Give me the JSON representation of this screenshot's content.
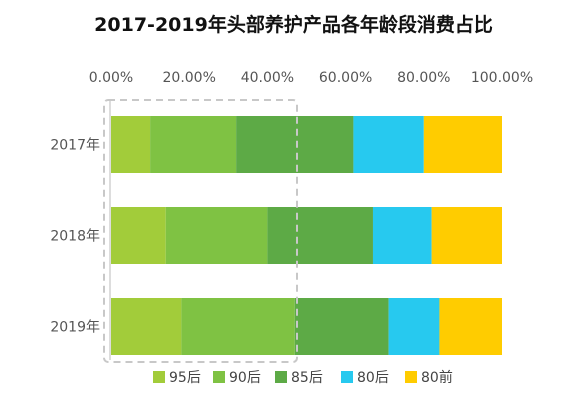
{
  "chart_data": {
    "type": "bar",
    "orientation": "horizontal",
    "stacked": true,
    "title": "2017-2019年头部养护产品各年龄段消费占比",
    "xlabel": "",
    "ylabel": "",
    "xlim": [
      0,
      100
    ],
    "x_ticks": [
      "0.00%",
      "20.00%",
      "40.00%",
      "60.00%",
      "80.00%",
      "100.00%"
    ],
    "x_axis_position": "top",
    "grid": false,
    "legend_position": "bottom",
    "categories": [
      "2017年",
      "2018年",
      "2019年"
    ],
    "series": [
      {
        "name": "95后",
        "color": "#A2CC3A",
        "values": [
          10,
          14,
          18
        ]
      },
      {
        "name": "90后",
        "color": "#7FC243",
        "values": [
          22,
          26,
          29
        ]
      },
      {
        "name": "85后",
        "color": "#5DAA46",
        "values": [
          30,
          27,
          24
        ]
      },
      {
        "name": "80后",
        "color": "#27C9EF",
        "values": [
          18,
          15,
          13
        ]
      },
      {
        "name": "80前",
        "color": "#FFCC00",
        "values": [
          20,
          18,
          16
        ]
      }
    ]
  }
}
